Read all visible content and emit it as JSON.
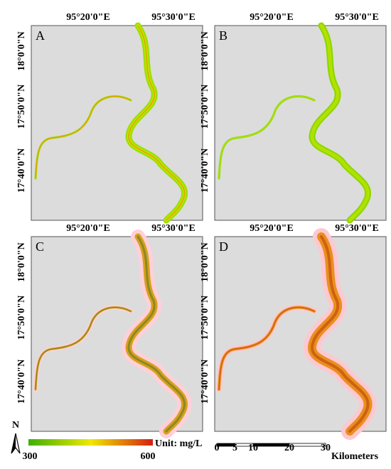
{
  "panels": [
    {
      "label": "A",
      "lon_labels": [
        "95°20'0\"E",
        "95°30'0\"E"
      ],
      "lat_labels": [
        "18°0'0\"N",
        "17°50'0\"N",
        "17°40'0\"N"
      ]
    },
    {
      "label": "B",
      "lon_labels": [
        "95°20'0\"E",
        "95°30'0\"E"
      ],
      "lat_labels": [
        "18°0'0\"N",
        "17°50'0\"N",
        "17°40'0\"N"
      ]
    },
    {
      "label": "C",
      "lon_labels": [
        "95°20'0\"E",
        "95°30'0\"E"
      ],
      "lat_labels": [
        "18°0'0\"N",
        "17°50'0\"N",
        "17°40'0\"N"
      ]
    },
    {
      "label": "D",
      "lon_labels": [
        "95°20'0\"E",
        "95°30'0\"E"
      ],
      "lat_labels": [
        "18°0'0\"N",
        "17°50'0\"N",
        "17°40'0\"N"
      ]
    }
  ],
  "north": "N",
  "legend": {
    "min": 300,
    "max": 600,
    "unit": "Unit: mg/L"
  },
  "scale_bar": {
    "ticks": [
      0,
      5,
      10,
      20,
      30
    ],
    "unit": "Kilometers"
  }
}
